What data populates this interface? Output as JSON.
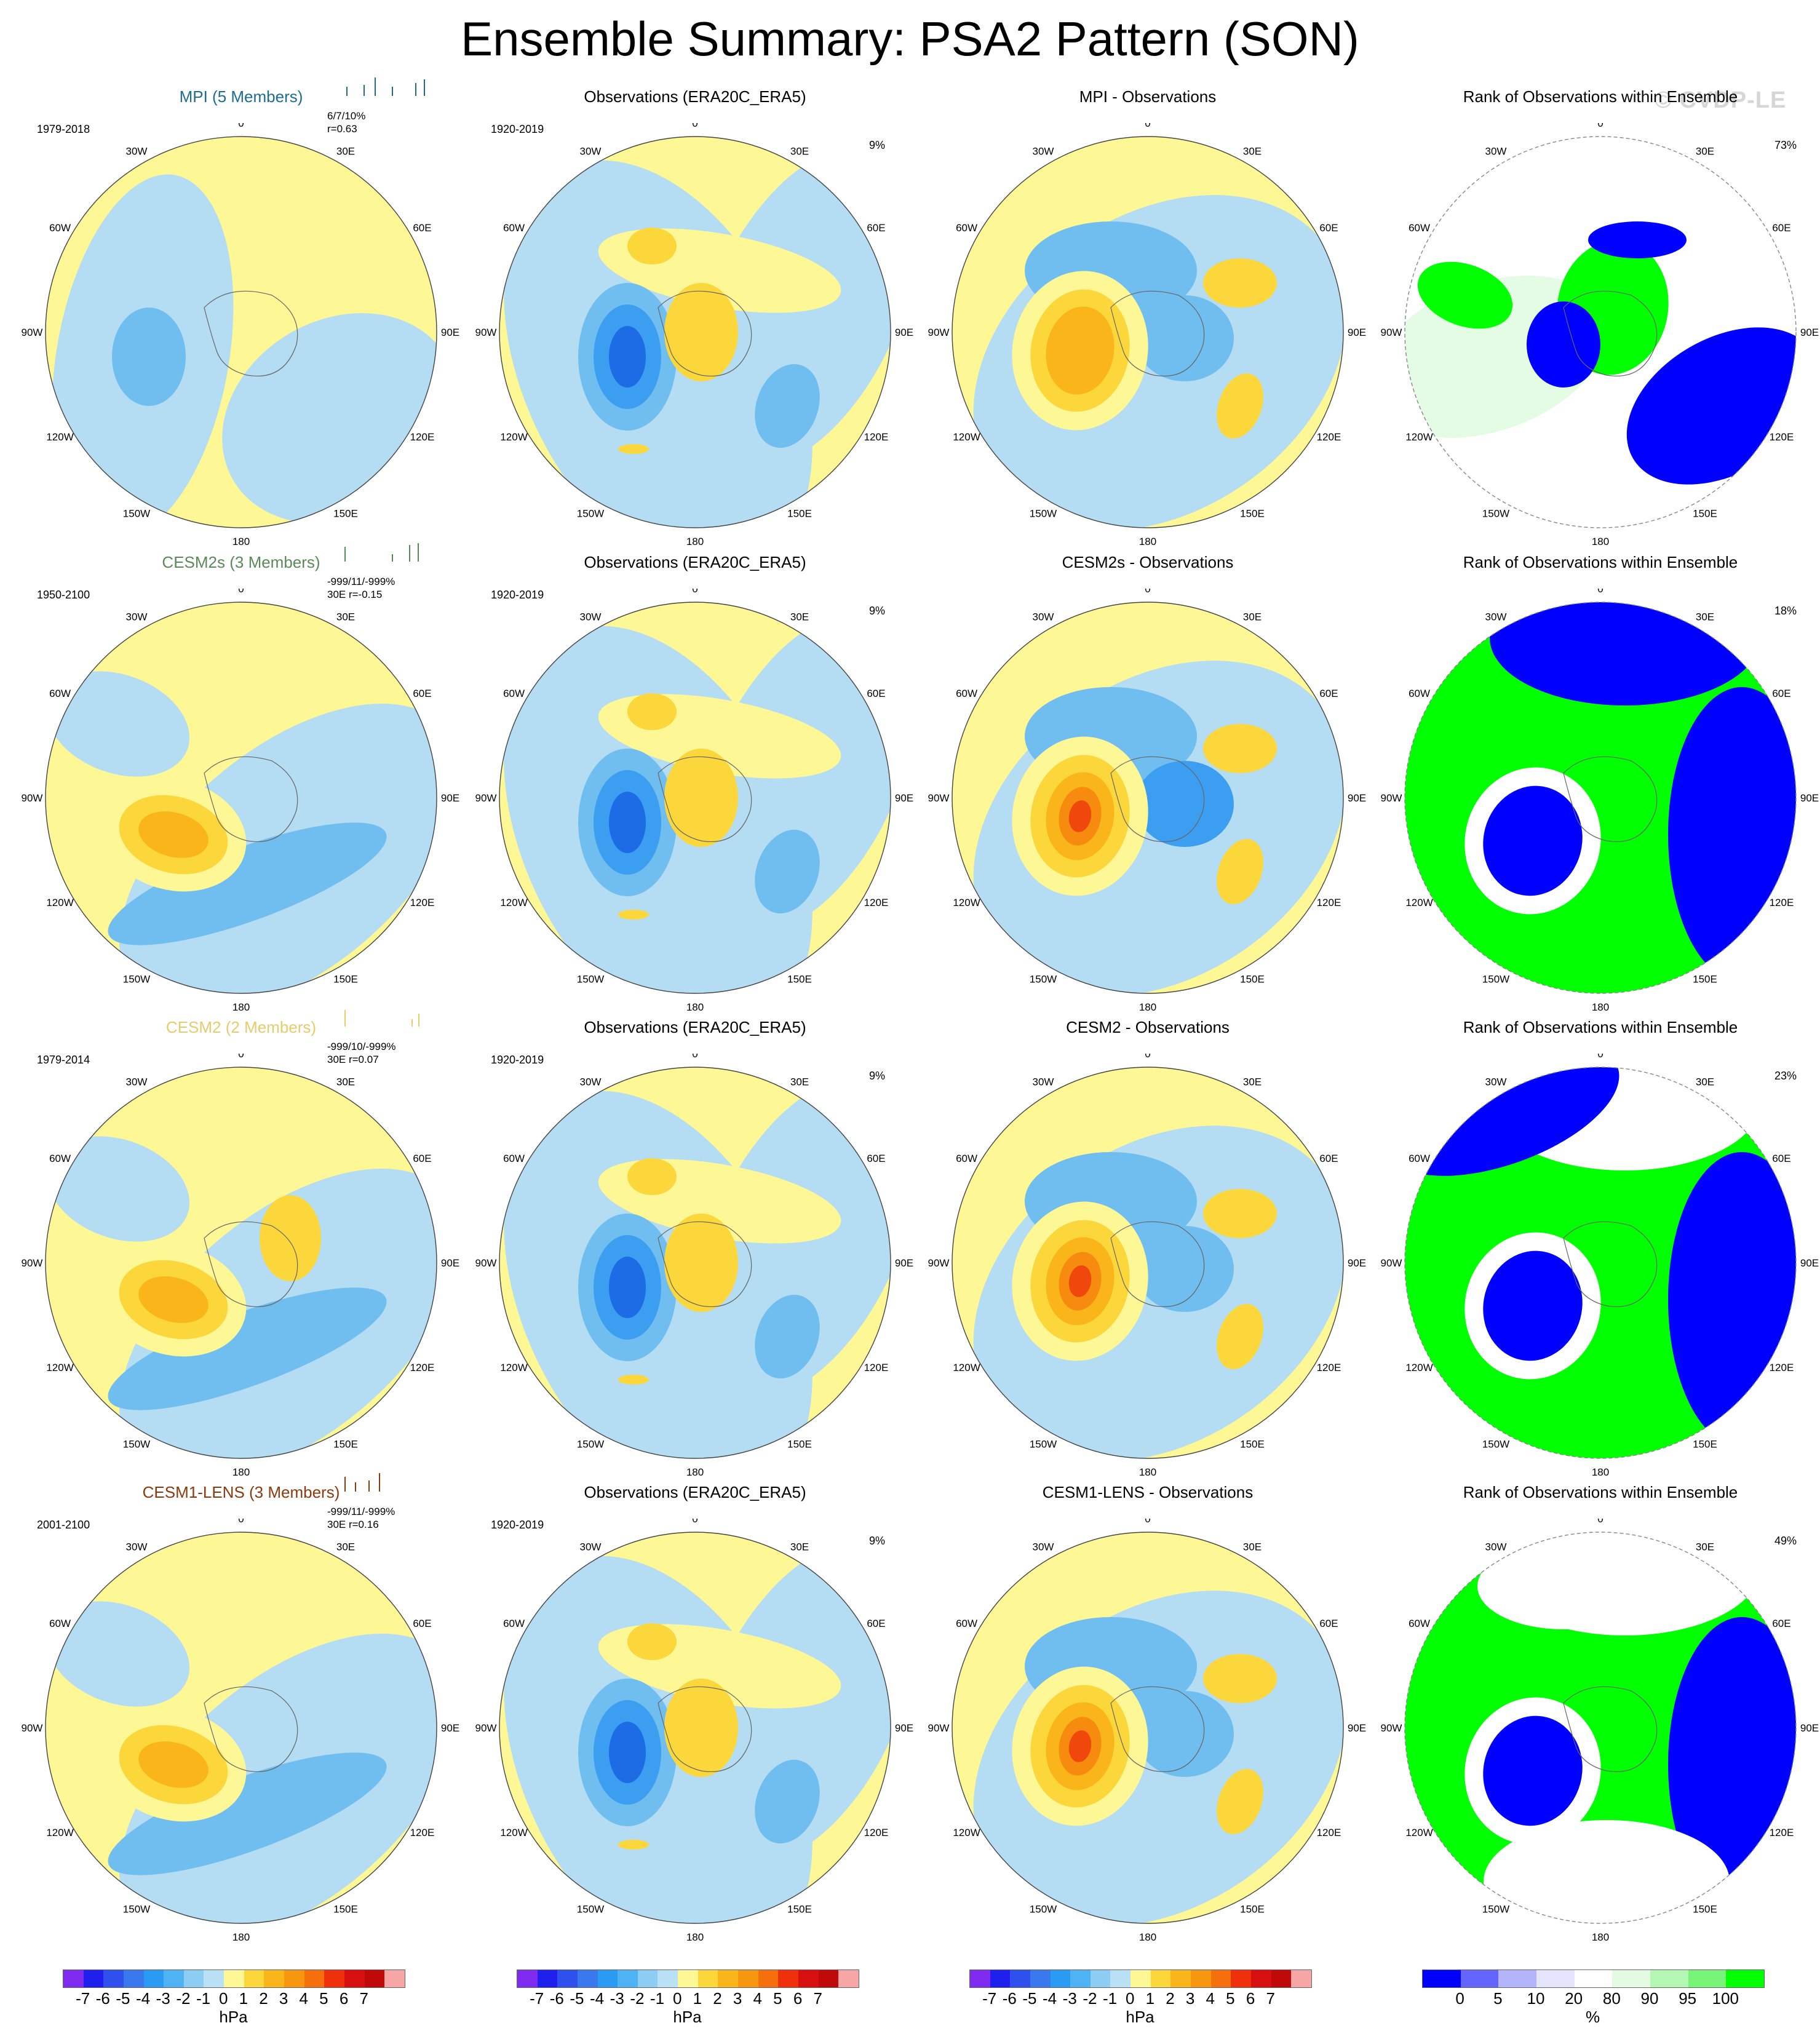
{
  "title": "Ensemble Summary: PSA2 Pattern (SON)",
  "watermark": "© CVDP-LE",
  "lon_labels": [
    "0",
    "30E",
    "60E",
    "90E",
    "120E",
    "150E",
    "180",
    "150W",
    "120W",
    "90W",
    "60W",
    "30W"
  ],
  "colors": {
    "pos1": "#fdf796",
    "pos2": "#fcd73b",
    "pos3": "#f9b51a",
    "pos4": "#f78b0f",
    "pos5": "#f0470d",
    "pos6": "#d41010",
    "neg1": "#b4dcf2",
    "neg2": "#70bdef",
    "neg3": "#3b9ef0",
    "neg4": "#16b0f7",
    "neg5": "#1e6be6",
    "rank_blue": "#0000ff",
    "rank_green": "#00ff00",
    "rank_light": "#e4fbe4"
  },
  "rows": [
    {
      "model": {
        "title": "MPI (5 Members)",
        "color": "#1f6c92",
        "years": "1979-2018",
        "stat_line1": "6/7/10%",
        "stat_line2": "r=0.63",
        "ticks": [
          {
            "pos": 0.02,
            "h": 0.5
          },
          {
            "pos": 0.22,
            "h": 0.6
          },
          {
            "pos": 0.35,
            "h": 1.0
          },
          {
            "pos": 0.55,
            "h": 0.5
          },
          {
            "pos": 0.82,
            "h": 0.7
          },
          {
            "pos": 0.92,
            "h": 0.9
          }
        ],
        "tick_color": "#1f6c92"
      },
      "obs": {
        "title": "Observations (ERA20C_ERA5)",
        "years": "1920-2019",
        "pct": "9%"
      },
      "diff": {
        "title": "MPI - Observations"
      },
      "rank": {
        "title": "Rank of Observations within Ensemble",
        "pct": "73%"
      }
    },
    {
      "model": {
        "title": "CESM2s (3 Members)",
        "color": "#5a8a5a",
        "years": "1950-2100",
        "stat_line1": "-999/11/-999%",
        "stat_line2": "30E  r=-0.15",
        "ticks": [
          {
            "pos": 0.0,
            "h": 0.8
          },
          {
            "pos": 0.55,
            "h": 0.4
          },
          {
            "pos": 0.75,
            "h": 0.9
          },
          {
            "pos": 0.85,
            "h": 1.0
          }
        ],
        "tick_color": "#5a8a5a"
      },
      "obs": {
        "title": "Observations (ERA20C_ERA5)",
        "years": "1920-2019",
        "pct": "9%"
      },
      "diff": {
        "title": "CESM2s - Observations"
      },
      "rank": {
        "title": "Rank of Observations within Ensemble",
        "pct": "18%"
      }
    },
    {
      "model": {
        "title": "CESM2 (2 Members)",
        "color": "#e6cc6a",
        "years": "1979-2014",
        "stat_line1": "-999/10/-999%",
        "stat_line2": "30E  r=0.07",
        "ticks": [
          {
            "pos": 0.0,
            "h": 0.9
          },
          {
            "pos": 0.78,
            "h": 0.4
          },
          {
            "pos": 0.86,
            "h": 0.7
          }
        ],
        "tick_color": "#e6cc6a"
      },
      "obs": {
        "title": "Observations (ERA20C_ERA5)",
        "years": "1920-2019",
        "pct": "9%"
      },
      "diff": {
        "title": "CESM2 - Observations"
      },
      "rank": {
        "title": "Rank of Observations within Ensemble",
        "pct": "23%"
      }
    },
    {
      "model": {
        "title": "CESM1-LENS (3 Members)",
        "color": "#8b3a0e",
        "years": "2001-2100",
        "stat_line1": "-999/11/-999%",
        "stat_line2": "30E  r=0.16",
        "ticks": [
          {
            "pos": 0.0,
            "h": 0.8
          },
          {
            "pos": 0.12,
            "h": 0.5
          },
          {
            "pos": 0.28,
            "h": 0.6
          },
          {
            "pos": 0.4,
            "h": 1.0
          }
        ],
        "tick_color": "#8b3a0e"
      },
      "obs": {
        "title": "Observations (ERA20C_ERA5)",
        "years": "1920-2019",
        "pct": "9%"
      },
      "diff": {
        "title": "CESM1-LENS - Observations"
      },
      "rank": {
        "title": "Rank of Observations within Ensemble",
        "pct": "49%"
      }
    }
  ],
  "colorbar_hpa": {
    "labels": [
      "-7",
      "-6",
      "-5",
      "-4",
      "-3",
      "-2",
      "-1",
      "0",
      "1",
      "2",
      "3",
      "4",
      "5",
      "6",
      "7"
    ],
    "colors": [
      "#7f2bf0",
      "#2020ee",
      "#3050ee",
      "#3a78ee",
      "#2a9bf2",
      "#4fb2f3",
      "#8dcdf3",
      "#b9e0f5",
      "#fdf796",
      "#fcd73b",
      "#f9b51a",
      "#f8960f",
      "#f5700c",
      "#ee300d",
      "#d80f0f",
      "#c00a0a",
      "#f7a6a6"
    ],
    "unit": "hPa"
  },
  "colorbar_rank": {
    "labels": [
      "0",
      "5",
      "10",
      "20",
      "80",
      "90",
      "95",
      "100"
    ],
    "colors": [
      "#0000ff",
      "#6464ff",
      "#b4b4fa",
      "#e4e4fc",
      "#ffffff",
      "#e2fbe2",
      "#b4f7b4",
      "#78f578",
      "#00ff00"
    ],
    "unit": "%"
  }
}
